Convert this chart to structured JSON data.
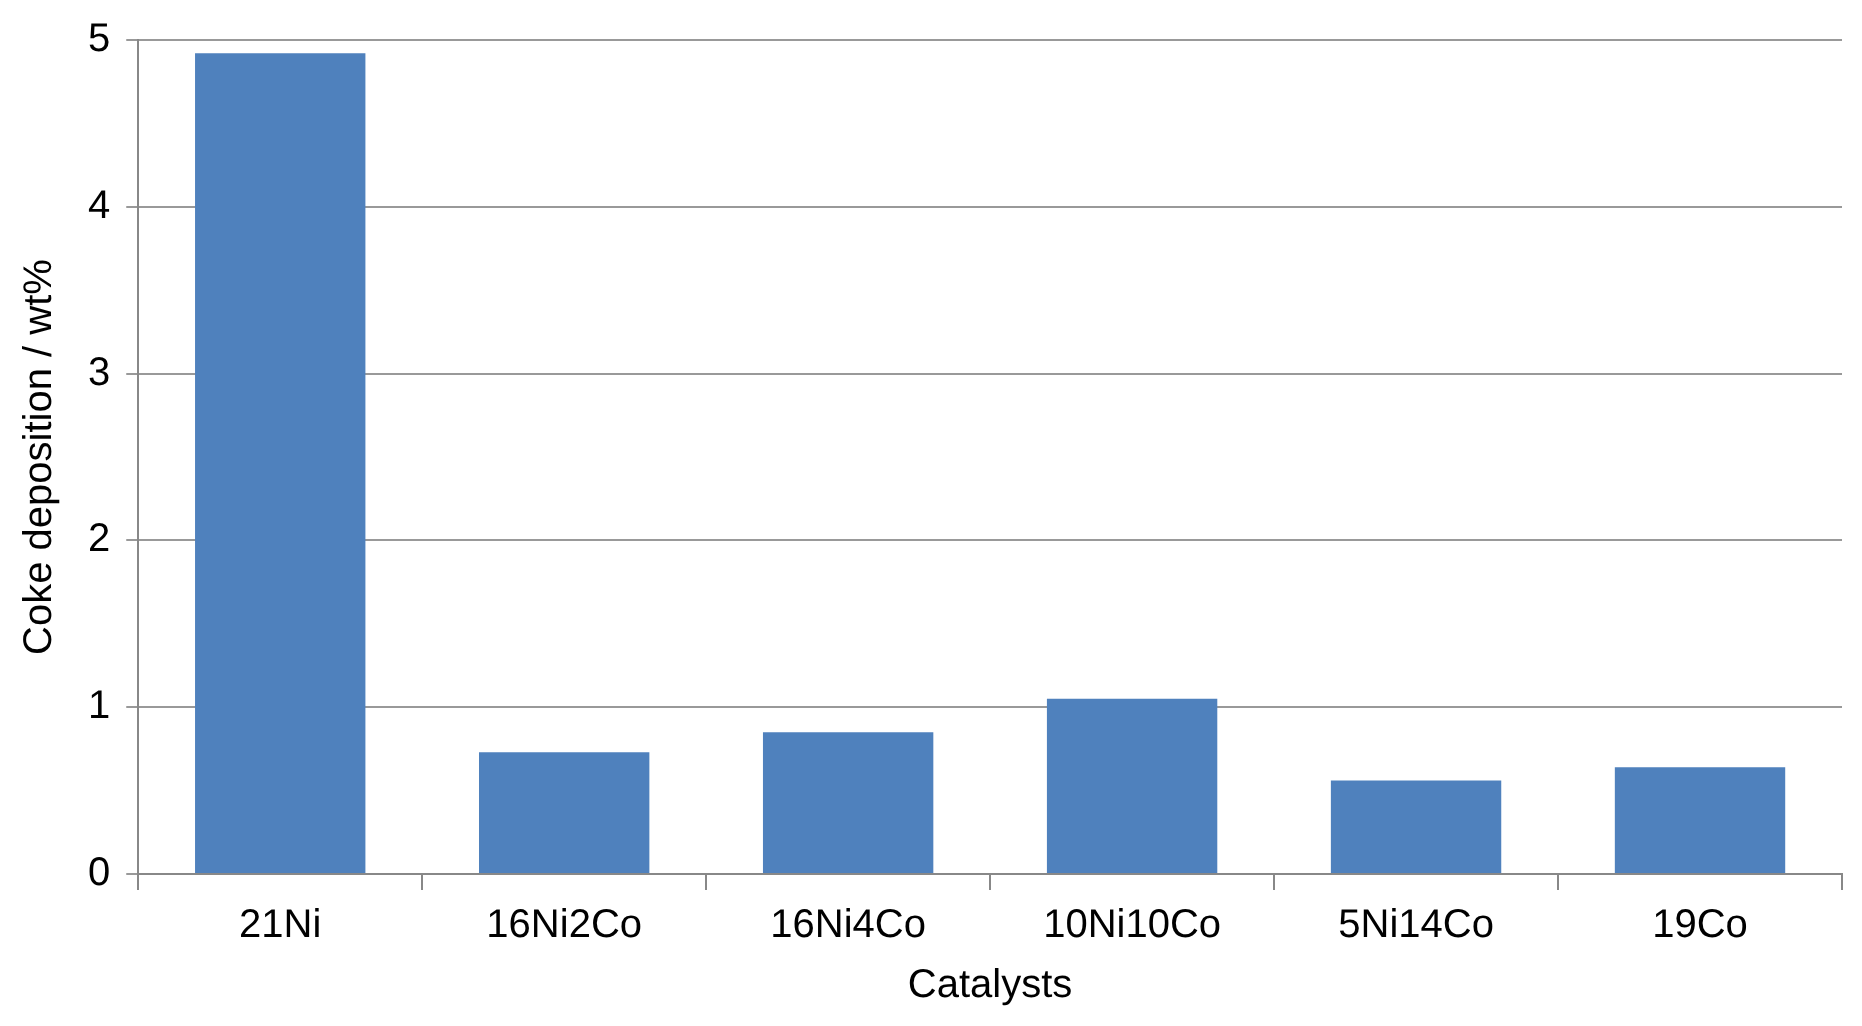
{
  "chart_data": {
    "type": "bar",
    "xlabel": "Catalysts",
    "ylabel": "Coke deposition / wt%",
    "categories": [
      "21Ni",
      "16Ni2Co",
      "16Ni4Co",
      "10Ni10Co",
      "5Ni14Co",
      "19Co"
    ],
    "values": [
      4.92,
      0.73,
      0.85,
      1.05,
      0.56,
      0.64
    ],
    "color": "#4f81bd",
    "ylim": [
      0,
      5
    ],
    "yticks": [
      0,
      1,
      2,
      3,
      4,
      5
    ],
    "grid": "y"
  }
}
